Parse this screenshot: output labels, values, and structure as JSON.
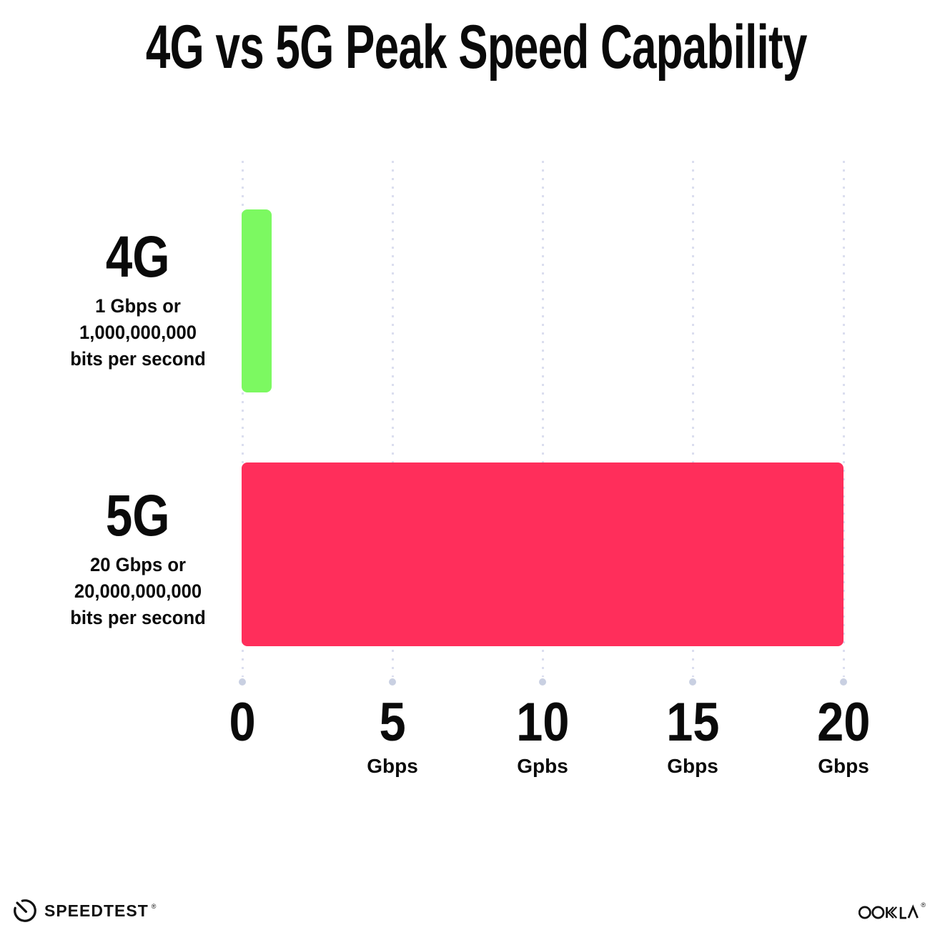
{
  "title": "4G vs 5G Peak Speed Capability",
  "chart_data": {
    "type": "bar",
    "orientation": "horizontal",
    "title": "4G vs 5G Peak Speed Capability",
    "categories": [
      "4G",
      "5G"
    ],
    "values": [
      1,
      20
    ],
    "unit": "Gbps",
    "xlim": [
      0,
      20
    ],
    "grid": "vertical dotted lines at each tick",
    "legend": "none",
    "x_ticks": [
      {
        "value": "0",
        "unit": ""
      },
      {
        "value": "5",
        "unit": "Gbps"
      },
      {
        "value": "10",
        "unit": "Gpbs"
      },
      {
        "value": "15",
        "unit": "Gbps"
      },
      {
        "value": "20",
        "unit": "Gbps"
      }
    ],
    "rows": [
      {
        "label": "4G",
        "sublabel_lines": [
          "1 Gbps or",
          "1,000,000,000",
          "bits per second"
        ],
        "value_gbps": 1,
        "color": "#7CF961"
      },
      {
        "label": "5G",
        "sublabel_lines": [
          "20 Gbps or",
          "20,000,000,000",
          "bits per second"
        ],
        "value_gbps": 20,
        "color": "#FF2E5B"
      }
    ]
  },
  "footer": {
    "speedtest_label": "SPEEDTEST",
    "speedtest_reg": "®",
    "ookla_label": "OOKLA",
    "ookla_reg": "®"
  },
  "colors": {
    "background": "#FFFFFF",
    "text": "#0A0A0A",
    "bar_4g": "#7CF961",
    "bar_5g": "#FF2E5B",
    "grid_dot": "#DBDEEF",
    "grid_end_dot": "#C9D0E2"
  }
}
